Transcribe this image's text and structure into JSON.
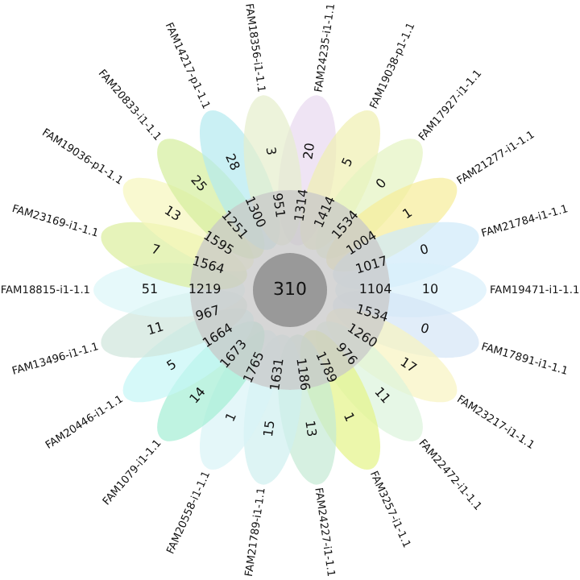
{
  "chart_data": {
    "type": "other",
    "categories": [
      "FAM24235-i1-1.1",
      "FAM19038-p1-1.1",
      "FAM17927-i1-1.1",
      "FAM21277-i1-1.1",
      "FAM21784-i1-1.1",
      "FAM19471-i1-1.1",
      "FAM17891-i1-1.1",
      "FAM23217-i1-1.1",
      "FAM22472-i1-1.1",
      "FAM3257-i1-1.1",
      "FAM24227-i1-1.1",
      "FAM21789-i1-1.1",
      "FAM20558-i1-1.1",
      "FAM1079-i1-1.1",
      "FAM20446-i1-1.1",
      "FAM13496-i1-1.1",
      "FAM18815-i1-1.1",
      "FAM23169-i1-1.1",
      "FAM19036-p1-1.1",
      "FAM20833-i1-1.1",
      "FAM14217-p1-1.1",
      "FAM18356-i1-1.1"
    ],
    "series": [
      {
        "values": [
          20,
          5,
          0,
          1,
          0,
          10,
          0,
          17,
          11,
          1,
          13,
          15,
          1,
          14,
          5,
          11,
          51,
          7,
          13,
          25,
          28,
          3
        ],
        "colors": [
          "#e8d8f0",
          "#f0f0b0",
          "#e4f4c0",
          "#f6ec98",
          "#cfeafa",
          "#d8f0fb",
          "#d4e6f6",
          "#f8f4c0",
          "#dcf4dc",
          "#e4f488",
          "#c4ead4",
          "#cff0f0",
          "#d8f4f6",
          "#a4eed4",
          "#c4f6f6",
          "#cfe6dc",
          "#dcf6f8",
          "#dcee9c",
          "#f6f6bc",
          "#d4ee9c",
          "#b4eaf0",
          "#e6eecc"
        ]
      },
      {
        "values": [
          1314,
          1414,
          1534,
          1004,
          1017,
          1104,
          1534,
          1260,
          976,
          1789,
          1186,
          1631,
          1765,
          1673,
          1664,
          967,
          1219,
          1564,
          1595,
          1251,
          1300,
          951
        ]
      }
    ],
    "data_labels": true,
    "annotations": [
      "310"
    ]
  }
}
